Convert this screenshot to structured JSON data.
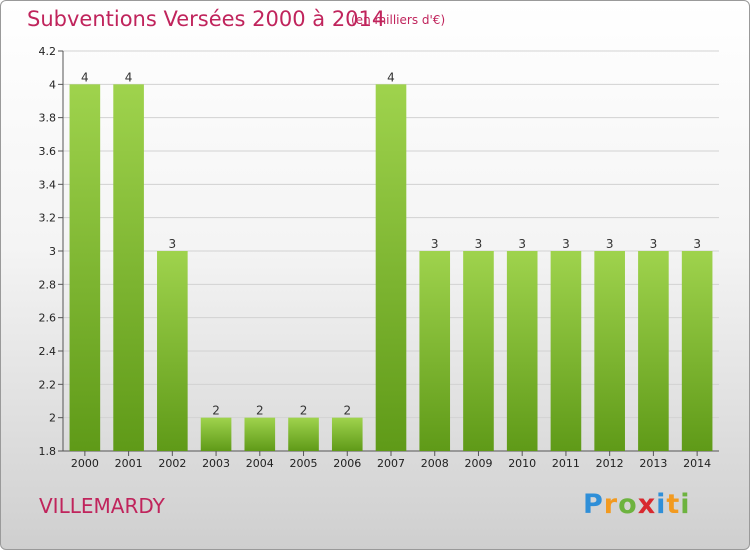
{
  "header": {
    "title": "Subventions Versées 2000 à 2014",
    "subtitle": "(en milliers d'€)"
  },
  "footer": {
    "commune": "VILLEMARDY",
    "brand_letters": [
      "P",
      "r",
      "o",
      "x",
      "i",
      "t",
      "i"
    ],
    "brand_colors": [
      "#2f8fd8",
      "#f29a1f",
      "#6db33f",
      "#d8292f",
      "#2f8fd8",
      "#f29a1f",
      "#6db33f"
    ]
  },
  "chart_data": {
    "type": "bar",
    "title": "Subventions Versées 2000 à 2014",
    "xlabel": "",
    "ylabel": "",
    "categories": [
      "2000",
      "2001",
      "2002",
      "2003",
      "2004",
      "2005",
      "2006",
      "2007",
      "2008",
      "2009",
      "2010",
      "2011",
      "2012",
      "2013",
      "2014"
    ],
    "values": [
      4,
      4,
      3,
      2,
      2,
      2,
      2,
      4,
      3,
      3,
      3,
      3,
      3,
      3,
      3
    ],
    "data_labels": [
      "4",
      "4",
      "3",
      "2",
      "2",
      "2",
      "2",
      "4",
      "3",
      "3",
      "3",
      "3",
      "3",
      "3",
      "3"
    ],
    "ylim": [
      1.8,
      4.2
    ],
    "yticks": [
      1.8,
      2,
      2.2,
      2.4,
      2.6,
      2.8,
      3,
      3.2,
      3.4,
      3.6,
      3.8,
      4,
      4.2
    ],
    "ytick_labels": [
      "1.8",
      "2",
      "2.2",
      "2.4",
      "2.6",
      "2.8",
      "3",
      "3.2",
      "3.4",
      "3.6",
      "3.8",
      "4",
      "4.2"
    ],
    "grid": "horizontal",
    "bar_color_top": "#9fd34d",
    "bar_color_bottom": "#5f9a18"
  }
}
